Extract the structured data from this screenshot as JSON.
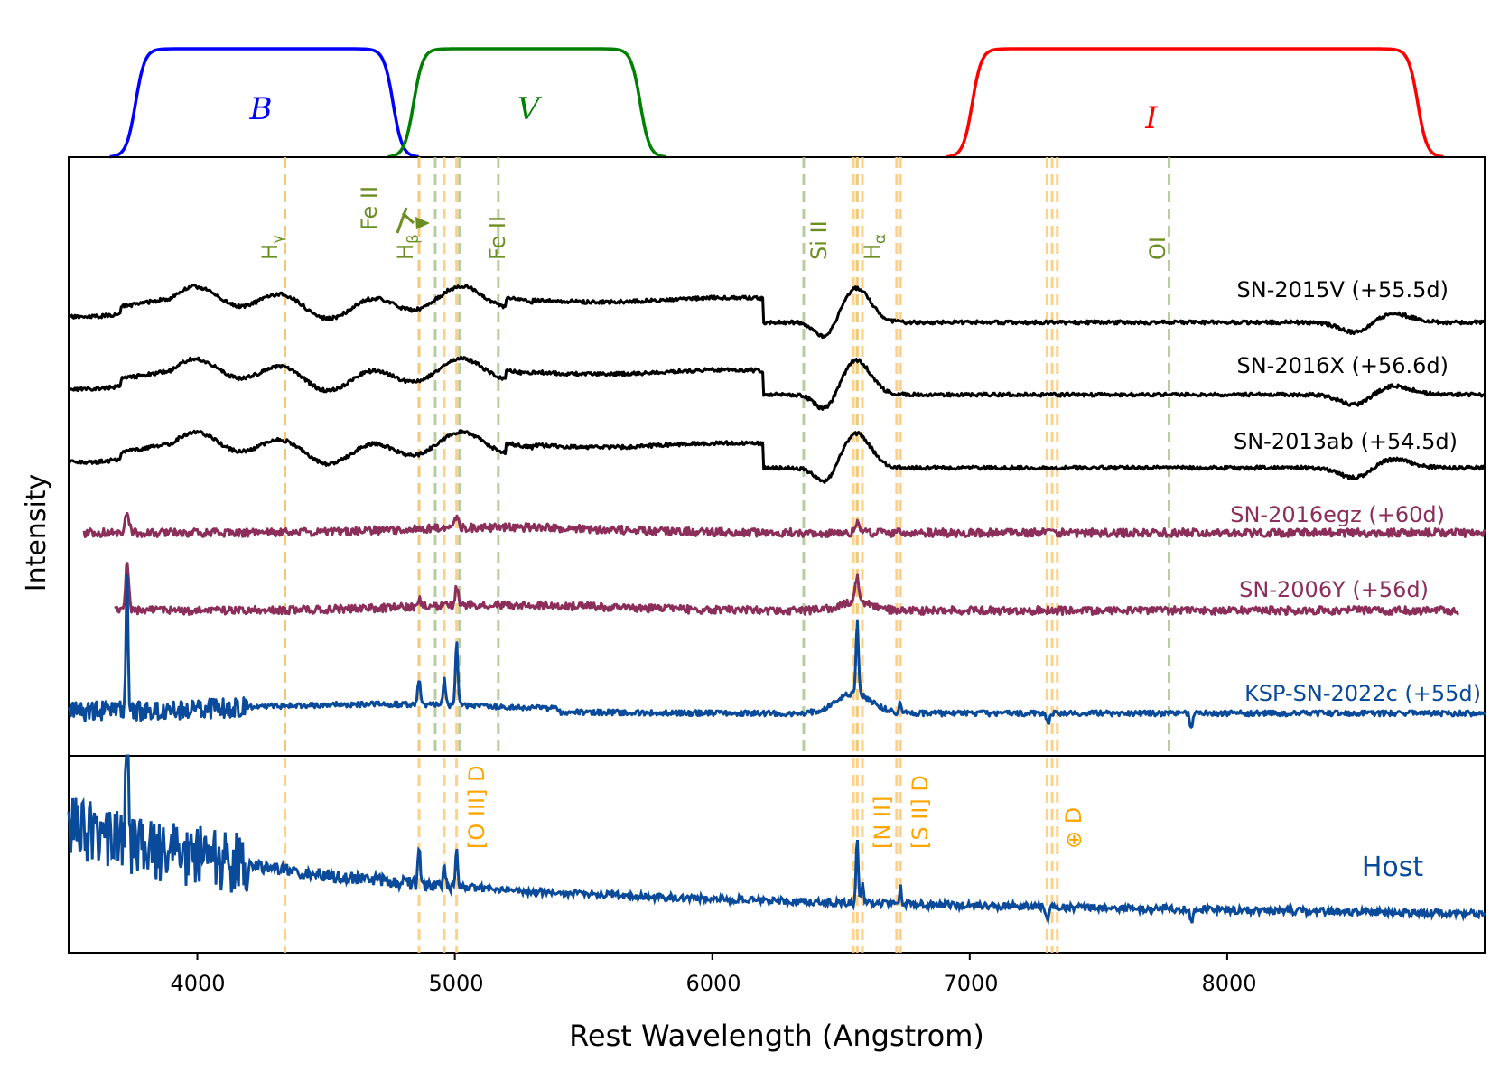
{
  "chart_data": {
    "type": "line",
    "xlabel": "Rest Wavelength (Angstrom)",
    "ylabel": "Intensity",
    "xlim": [
      3500,
      9000
    ],
    "xticks": [
      4000,
      5000,
      6000,
      7000,
      8000
    ],
    "filters": [
      {
        "name": "B",
        "color": "#0000ff",
        "range": [
          3700,
          4820
        ],
        "label_x": 4250
      },
      {
        "name": "V",
        "color": "#008000",
        "range": [
          4780,
          5780
        ],
        "label_x": 5280
      },
      {
        "name": "I",
        "color": "#ff0000",
        "range": [
          6950,
          8800
        ],
        "label_x": 7680
      }
    ],
    "sn_lines": [
      {
        "label": "H$\\gamma$",
        "text": "Hγ",
        "x": 4340
      },
      {
        "label": "H$\\beta$",
        "text": "Hβ",
        "x": 4861
      },
      {
        "label": "",
        "text": "",
        "x": 4924
      },
      {
        "label": "Fe II",
        "text": "Fe II",
        "x": 5018
      },
      {
        "label": "Fe II",
        "text": "Fe II",
        "x": 5169
      },
      {
        "label": "Si II",
        "text": "Si II",
        "x": 6355
      },
      {
        "label": "H$\\alpha$",
        "text": "Hα",
        "x": 6563
      },
      {
        "label": "OI",
        "text": "OI",
        "x": 7774
      }
    ],
    "host_lines": [
      {
        "x": 4340
      },
      {
        "x": 4861
      },
      {
        "x": 4959
      },
      {
        "x": 5007
      },
      {
        "x": 6548
      },
      {
        "x": 6563
      },
      {
        "x": 6583
      },
      {
        "x": 6716
      },
      {
        "x": 6731
      },
      {
        "x": 7300
      },
      {
        "x": 7320
      },
      {
        "x": 7340
      }
    ],
    "host_line_labels": [
      {
        "text": "[O III] D",
        "x": 5007
      },
      {
        "text": "[N II]",
        "x": 6583
      },
      {
        "text": "[S II] D",
        "x": 6731
      },
      {
        "text": "⊕ D",
        "x": 7340
      }
    ],
    "series": [
      {
        "name": "SN-2015V (+55.5d)",
        "color": "#000000",
        "start": 3500,
        "end": 9000,
        "offset": 6.3,
        "seed": 11,
        "type": "IIP"
      },
      {
        "name": "SN-2016X (+56.6d)",
        "color": "#000000",
        "start": 3500,
        "end": 9000,
        "offset": 5.5,
        "seed": 23,
        "type": "IIP"
      },
      {
        "name": "SN-2013ab (+54.5d)",
        "color": "#000000",
        "start": 3500,
        "end": 9000,
        "offset": 4.6,
        "seed": 37,
        "type": "IIP"
      },
      {
        "name": "SN-2016egz (+60d)",
        "color": "#8b2e5a",
        "start": 3560,
        "end": 9000,
        "offset": 3.5,
        "seed": 41,
        "type": "flat"
      },
      {
        "name": "SN-2006Y (+56d)",
        "color": "#8b2e5a",
        "start": 3680,
        "end": 8900,
        "offset": 2.6,
        "seed": 53,
        "type": "flat2"
      },
      {
        "name": "KSP-SN-2022c (+55d)",
        "color": "#0a4a9a",
        "start": 3500,
        "end": 9000,
        "offset": 1.1,
        "seed": 67,
        "type": "ksp"
      }
    ],
    "host": {
      "name": "Host",
      "color": "#0a4a9a",
      "start": 3500,
      "end": 9000,
      "seed": 79
    }
  },
  "labels": {
    "xlabel": "Rest Wavelength (Angstrom)",
    "ylabel": "Intensity",
    "host": "Host",
    "filter_b": "B",
    "filter_v": "V",
    "filter_i": "I",
    "series_0": "SN-2015V (+55.5d)",
    "series_1": "SN-2016X (+56.6d)",
    "series_2": "SN-2013ab (+54.5d)",
    "series_3": "SN-2016egz (+60d)",
    "series_4": "SN-2006Y (+56d)",
    "series_5": "KSP-SN-2022c (+55d)",
    "tick_0": "4000",
    "tick_1": "5000",
    "tick_2": "6000",
    "tick_3": "7000",
    "tick_4": "8000",
    "line_hg": "H",
    "line_hg_sub": "γ",
    "line_hb": "H",
    "line_hb_sub": "β",
    "line_fe1": "Fe II",
    "line_fe2": "Fe II",
    "line_si": "Si II",
    "line_ha": "H",
    "line_ha_sub": "α",
    "line_oi": "OI",
    "host_oiii": "[O III] D",
    "host_nii": "[N II]",
    "host_sii": "[S II] D",
    "host_earth": "⊕ D"
  }
}
